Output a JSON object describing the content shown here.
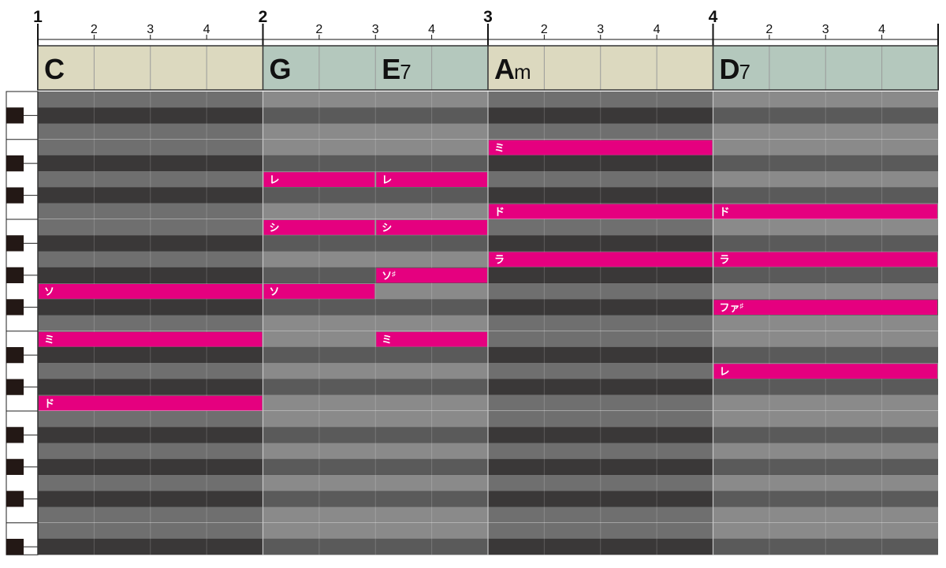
{
  "timeline": {
    "measures": [
      "1",
      "2",
      "3",
      "4"
    ],
    "beats": [
      "2",
      "3",
      "4"
    ]
  },
  "chords": [
    {
      "root": "C",
      "suffix": "",
      "measure": 1,
      "beat": 1,
      "beats": 4,
      "color": "#dcd9bf"
    },
    {
      "root": "G",
      "suffix": "",
      "measure": 2,
      "beat": 1,
      "beats": 2,
      "color": "#b4c8bd"
    },
    {
      "root": "E",
      "suffix": "7",
      "measure": 2,
      "beat": 3,
      "beats": 2,
      "color": "#b4c8bd"
    },
    {
      "root": "A",
      "suffix": "m",
      "measure": 3,
      "beat": 1,
      "beats": 4,
      "color": "#dcd9bf"
    },
    {
      "root": "D",
      "suffix": "7",
      "measure": 4,
      "beat": 1,
      "beats": 4,
      "color": "#b4c8bd"
    }
  ],
  "notes": [
    {
      "label": "ミ",
      "sharp": "",
      "pitch": "E5",
      "measure": 3,
      "beat": 1,
      "beats": 4
    },
    {
      "label": "レ",
      "sharp": "",
      "pitch": "D5",
      "measure": 2,
      "beat": 1,
      "beats": 2
    },
    {
      "label": "レ",
      "sharp": "",
      "pitch": "D5",
      "measure": 2,
      "beat": 3,
      "beats": 2
    },
    {
      "label": "ド",
      "sharp": "",
      "pitch": "C5",
      "measure": 3,
      "beat": 1,
      "beats": 4
    },
    {
      "label": "ド",
      "sharp": "",
      "pitch": "C5",
      "measure": 4,
      "beat": 1,
      "beats": 4
    },
    {
      "label": "シ",
      "sharp": "",
      "pitch": "B4",
      "measure": 2,
      "beat": 1,
      "beats": 2
    },
    {
      "label": "シ",
      "sharp": "",
      "pitch": "B4",
      "measure": 2,
      "beat": 3,
      "beats": 2
    },
    {
      "label": "ラ",
      "sharp": "",
      "pitch": "A4",
      "measure": 3,
      "beat": 1,
      "beats": 4
    },
    {
      "label": "ラ",
      "sharp": "",
      "pitch": "A4",
      "measure": 4,
      "beat": 1,
      "beats": 4
    },
    {
      "label": "ソ",
      "sharp": "♯",
      "pitch": "G#4",
      "measure": 2,
      "beat": 3,
      "beats": 2
    },
    {
      "label": "ソ",
      "sharp": "",
      "pitch": "G4",
      "measure": 1,
      "beat": 1,
      "beats": 4
    },
    {
      "label": "ソ",
      "sharp": "",
      "pitch": "G4",
      "measure": 2,
      "beat": 1,
      "beats": 2
    },
    {
      "label": "ファ",
      "sharp": "♯",
      "pitch": "F#4",
      "measure": 4,
      "beat": 1,
      "beats": 4
    },
    {
      "label": "ミ",
      "sharp": "",
      "pitch": "E4",
      "measure": 1,
      "beat": 1,
      "beats": 4
    },
    {
      "label": "ミ",
      "sharp": "",
      "pitch": "E4",
      "measure": 2,
      "beat": 3,
      "beats": 2
    },
    {
      "label": "レ",
      "sharp": "",
      "pitch": "D4",
      "measure": 4,
      "beat": 1,
      "beats": 4
    },
    {
      "label": "ド",
      "sharp": "",
      "pitch": "C4",
      "measure": 1,
      "beat": 1,
      "beats": 4
    }
  ],
  "colors": {
    "note": "#e5007f",
    "white_key_row_light": "#8a8a8a",
    "white_key_row_dark": "#6f6f6f",
    "black_key_row_light": "#5a5a5a",
    "black_key_row_dark": "#3a3838"
  }
}
